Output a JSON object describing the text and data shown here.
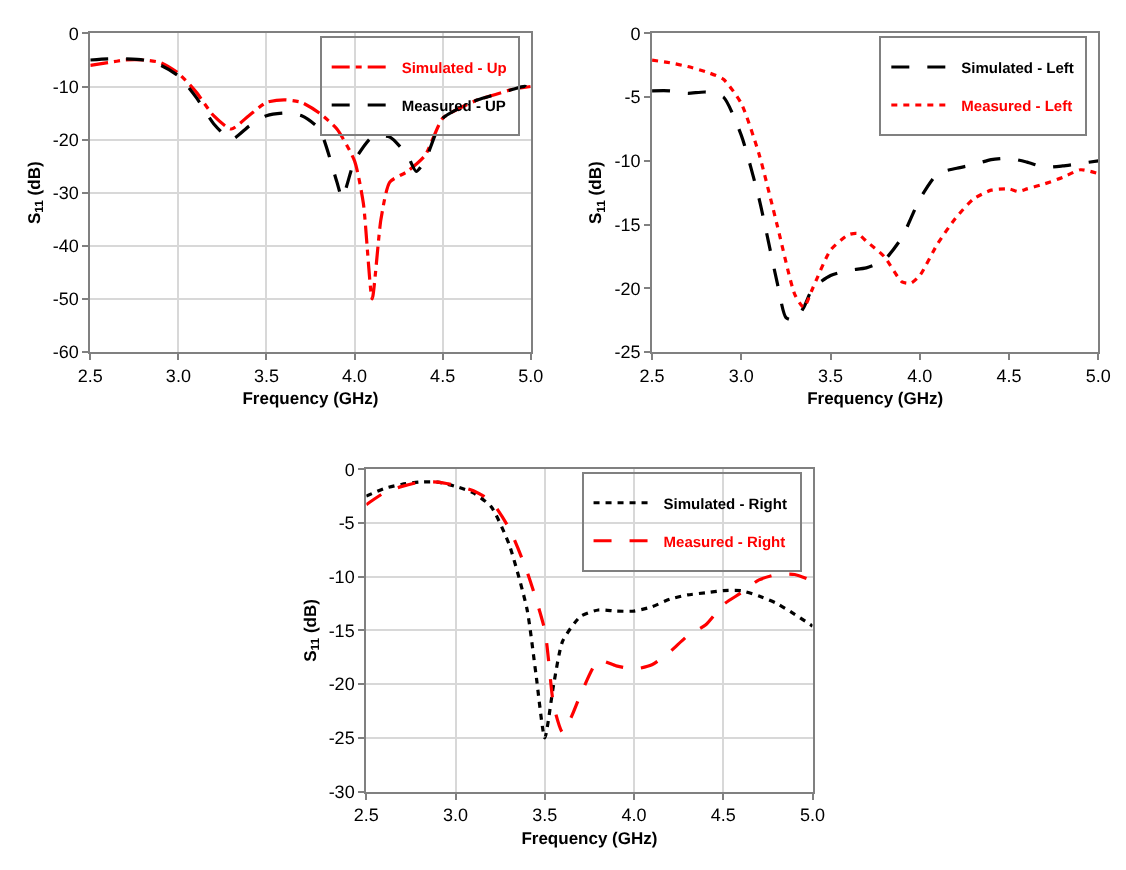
{
  "chart_data": [
    {
      "type": "line",
      "xlabel": "Frequency (GHz)",
      "ylabel": "S$_{11}$ (dB)",
      "xlim": [
        2.5,
        5.0
      ],
      "xticks": [
        {
          "value": 2.5,
          "label": "2.5"
        },
        {
          "value": 3,
          "label": "3.0"
        },
        {
          "value": 3.5,
          "label": "3.5"
        },
        {
          "value": 4,
          "label": "4.0"
        },
        {
          "value": 4.5,
          "label": "4.5"
        },
        {
          "value": 5,
          "label": "5.0"
        }
      ],
      "ylim": [
        -60,
        0
      ],
      "yticks": [
        -60,
        -50,
        -40,
        -30,
        -20,
        -10,
        0
      ],
      "grid": true,
      "legend": "top right",
      "marker": "none",
      "series": [
        {
          "name": "Simulated - Up",
          "color": "#ff0000",
          "line_style": "dashdot",
          "x": [
            2.5,
            2.6,
            2.7,
            2.8,
            2.9,
            3.0,
            3.1,
            3.2,
            3.3,
            3.4,
            3.5,
            3.6,
            3.7,
            3.8,
            3.9,
            4.0,
            4.05,
            4.1,
            4.15,
            4.2,
            4.3,
            4.4,
            4.5,
            4.6,
            4.7,
            4.8,
            4.9,
            5.0
          ],
          "values": [
            -6,
            -5.5,
            -5,
            -5,
            -5.5,
            -7.5,
            -11,
            -15.5,
            -18,
            -15.5,
            -13,
            -12.5,
            -13,
            -15,
            -18,
            -24,
            -32,
            -50,
            -35,
            -28,
            -26,
            -23,
            -16,
            -14,
            -12.5,
            -11.5,
            -10.5,
            -10
          ]
        },
        {
          "name": "Measured - UP",
          "color": "#000000",
          "line_style": "dashed",
          "x": [
            2.5,
            2.6,
            2.7,
            2.8,
            2.9,
            3.0,
            3.1,
            3.2,
            3.3,
            3.4,
            3.5,
            3.6,
            3.7,
            3.8,
            3.9,
            3.93,
            4.0,
            4.1,
            4.2,
            4.3,
            4.35,
            4.4,
            4.5,
            4.6,
            4.7,
            4.8,
            4.9,
            4.97,
            5.0
          ],
          "values": [
            -5,
            -4.8,
            -4.8,
            -5,
            -6,
            -8,
            -12,
            -17,
            -20,
            -17.5,
            -15.5,
            -15,
            -15.5,
            -18,
            -28,
            -31,
            -24,
            -19.5,
            -19.5,
            -23,
            -26,
            -24,
            -16,
            -14,
            -12.5,
            -11.5,
            -10.5,
            -10,
            -12
          ]
        }
      ]
    },
    {
      "type": "line",
      "xlabel": "Frequency (GHz)",
      "ylabel": "S$_{11}$ (dB)",
      "xlim": [
        2.5,
        5.0
      ],
      "xticks": [
        {
          "value": 2.5,
          "label": "2.5"
        },
        {
          "value": 3,
          "label": "3.0"
        },
        {
          "value": 3.5,
          "label": "3.5"
        },
        {
          "value": 4,
          "label": "4.0"
        },
        {
          "value": 4.5,
          "label": "4.5"
        },
        {
          "value": 5,
          "label": "5.0"
        }
      ],
      "ylim": [
        -25,
        0
      ],
      "yticks": [
        -25,
        -20,
        -15,
        -10,
        -5,
        0
      ],
      "legend": "top right",
      "marker": "none",
      "series": [
        {
          "name": "Simulated - Left",
          "color": "#000000",
          "line_style": "dashed",
          "x": [
            2.5,
            2.6,
            2.7,
            2.8,
            2.9,
            3.0,
            3.1,
            3.2,
            3.25,
            3.3,
            3.35,
            3.4,
            3.5,
            3.6,
            3.7,
            3.8,
            3.9,
            4.0,
            4.1,
            4.2,
            4.3,
            4.4,
            4.5,
            4.6,
            4.7,
            4.8,
            4.9,
            5.0
          ],
          "values": [
            -4.5,
            -4.5,
            -4.7,
            -4.6,
            -5,
            -8,
            -13,
            -19.5,
            -22.3,
            -22.5,
            -21.5,
            -20,
            -19,
            -18.6,
            -18.4,
            -17.8,
            -16,
            -13,
            -11,
            -10.6,
            -10.3,
            -9.9,
            -9.8,
            -10.1,
            -10.5,
            -10.4,
            -10.2,
            -10
          ]
        },
        {
          "name": "Measured - Left",
          "color": "#ff0000",
          "line_style": "dotted",
          "x": [
            2.5,
            2.6,
            2.7,
            2.8,
            2.9,
            3.0,
            3.1,
            3.2,
            3.3,
            3.35,
            3.4,
            3.5,
            3.6,
            3.65,
            3.7,
            3.8,
            3.9,
            3.95,
            4.0,
            4.1,
            4.2,
            4.3,
            4.4,
            4.5,
            4.55,
            4.6,
            4.7,
            4.8,
            4.9,
            5.0
          ],
          "values": [
            -2.1,
            -2.3,
            -2.6,
            -3,
            -3.6,
            -5.5,
            -9.5,
            -15,
            -20.5,
            -21.5,
            -20,
            -17,
            -15.8,
            -15.7,
            -16.3,
            -17.5,
            -19.5,
            -19.6,
            -19,
            -16.5,
            -14.5,
            -13,
            -12.3,
            -12.2,
            -12.4,
            -12.2,
            -11.8,
            -11.3,
            -10.7,
            -11
          ]
        }
      ]
    },
    {
      "type": "line",
      "xlabel": "Frequency (GHz)",
      "ylabel": "S$_{11}$ (dB)",
      "xlim": [
        2.5,
        5.0
      ],
      "xticks": [
        {
          "value": 2.5,
          "label": "2.5"
        },
        {
          "value": 3,
          "label": "3.0"
        },
        {
          "value": 3.5,
          "label": "3.5"
        },
        {
          "value": 4,
          "label": "4.0"
        },
        {
          "value": 4.5,
          "label": "4.5"
        },
        {
          "value": 5,
          "label": "5.0"
        }
      ],
      "ylim": [
        -30,
        0
      ],
      "yticks": [
        -30,
        -25,
        -20,
        -15,
        -10,
        -5,
        0
      ],
      "grid": true,
      "legend": "top right",
      "marker": "none",
      "series": [
        {
          "name": "Simulated - Right",
          "color": "#000000",
          "line_style": "dotted",
          "x": [
            2.5,
            2.6,
            2.7,
            2.8,
            2.9,
            3.0,
            3.1,
            3.2,
            3.3,
            3.4,
            3.45,
            3.5,
            3.55,
            3.6,
            3.7,
            3.8,
            3.9,
            4.0,
            4.1,
            4.2,
            4.3,
            4.4,
            4.5,
            4.6,
            4.7,
            4.8,
            4.9,
            5.0
          ],
          "values": [
            -2.5,
            -1.8,
            -1.4,
            -1.2,
            -1.2,
            -1.6,
            -2.2,
            -3.5,
            -7,
            -13,
            -19,
            -25,
            -20,
            -16,
            -13.7,
            -13.1,
            -13.2,
            -13.2,
            -12.8,
            -12.1,
            -11.7,
            -11.5,
            -11.3,
            -11.3,
            -11.8,
            -12.5,
            -13.5,
            -14.6
          ]
        },
        {
          "name": "Measured - Right",
          "color": "#ff0000",
          "line_style": "dashed",
          "x": [
            2.5,
            2.6,
            2.7,
            2.8,
            2.9,
            3.0,
            3.1,
            3.2,
            3.3,
            3.4,
            3.5,
            3.55,
            3.6,
            3.65,
            3.7,
            3.8,
            3.9,
            4.0,
            4.1,
            4.2,
            4.3,
            4.4,
            4.5,
            4.6,
            4.7,
            4.8,
            4.9,
            5.0
          ],
          "values": [
            -3.3,
            -2.2,
            -1.6,
            -1.2,
            -1.2,
            -1.5,
            -2,
            -3,
            -5.5,
            -9.5,
            -15,
            -22,
            -24.5,
            -23,
            -21,
            -17.8,
            -18.3,
            -18.6,
            -18.2,
            -17,
            -15.5,
            -14.5,
            -12.6,
            -11.5,
            -10.3,
            -9.8,
            -9.8,
            -10.4
          ]
        }
      ]
    }
  ]
}
